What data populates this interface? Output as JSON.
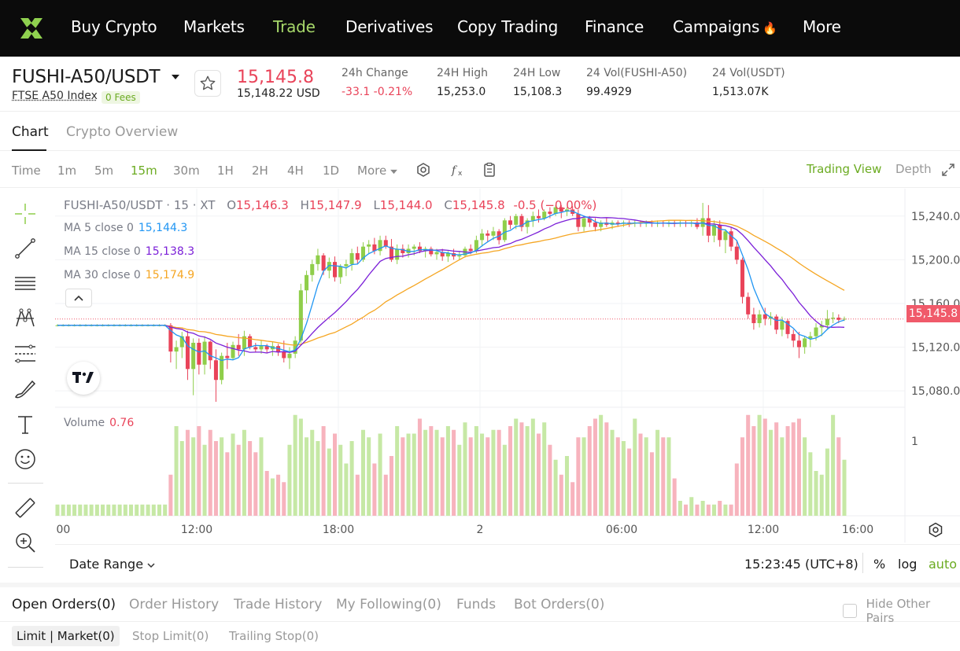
{
  "nav": {
    "items": [
      {
        "label": "Buy Crypto",
        "active": false
      },
      {
        "label": "Markets",
        "active": false
      },
      {
        "label": "Trade",
        "active": true
      },
      {
        "label": "Derivatives",
        "active": false
      },
      {
        "label": "Copy Trading",
        "active": false
      },
      {
        "label": "Finance",
        "active": false
      },
      {
        "label": "Campaigns",
        "active": false
      },
      {
        "label": "More",
        "active": false
      }
    ],
    "campaigns_icon": "🔥"
  },
  "ticker": {
    "pair": "FUSHI-A50/USDT",
    "index": "FTSE A50 Index",
    "fees_badge": "0 Fees",
    "last_price": "15,145.8",
    "last_usd": "15,148.22 USD",
    "stats": [
      {
        "label": "24h Change",
        "value": "-33.1 -0.21%",
        "negative": true
      },
      {
        "label": "24H High",
        "value": "15,253.0"
      },
      {
        "label": "24H Low",
        "value": "15,108.3"
      },
      {
        "label": "24 Vol(FUSHI-A50)",
        "value": "99.4929"
      },
      {
        "label": "24 Vol(USDT)",
        "value": "1,513.07K"
      }
    ]
  },
  "chart_tabs": [
    "Chart",
    "Crypto Overview"
  ],
  "intervals": [
    "Time",
    "1m",
    "5m",
    "15m",
    "30m",
    "1H",
    "2H",
    "4H",
    "1D",
    "More"
  ],
  "active_interval": "15m",
  "view_modes": {
    "trading_view": "Trading View",
    "depth": "Depth"
  },
  "legend": {
    "symbol": "FUSHI-A50/USDT · 15 · XT",
    "o_label": "O",
    "o": "15,146.3",
    "h_label": "H",
    "h": "15,147.9",
    "l_label": "L",
    "l": "15,144.0",
    "c_label": "C",
    "c": "15,145.8",
    "change": "-0.5 (−0.00%)"
  },
  "ma": [
    {
      "label": "MA 5 close 0",
      "value": "15,144.3",
      "color": "#2196f3"
    },
    {
      "label": "MA 15 close 0",
      "value": "15,138.3",
      "color": "#7b1fd8"
    },
    {
      "label": "MA 30 close 0",
      "value": "15,174.9",
      "color": "#f5a623"
    }
  ],
  "volume": {
    "label": "Volume",
    "value": "0.76"
  },
  "current_price_tag": "15,145.8",
  "colors": {
    "up": "#8fce4a",
    "down": "#e94359",
    "vol_up": "#c6e8a5",
    "vol_down": "#f7b3bd",
    "accent": "#6bab21"
  },
  "chart_data": {
    "type": "candlestick",
    "y_ticks": [
      "15,240.0",
      "15,200.0",
      "15,160.0",
      "15,120.0",
      "15,080.0"
    ],
    "ylim": [
      15065,
      15265
    ],
    "volume_tick": "1",
    "x_ticks": [
      ":00",
      "12:00",
      "18:00",
      "2",
      "06:00",
      "12:00",
      "16:00"
    ],
    "ohlc": [
      [
        15140,
        15141,
        15139,
        15140
      ],
      [
        15140,
        15141,
        15139,
        15140
      ],
      [
        15140,
        15141,
        15139,
        15140
      ],
      [
        15140,
        15141,
        15139,
        15140
      ],
      [
        15140,
        15141,
        15139,
        15140
      ],
      [
        15140,
        15141,
        15139,
        15140
      ],
      [
        15140,
        15141,
        15139,
        15140
      ],
      [
        15140,
        15141,
        15139,
        15140
      ],
      [
        15140,
        15141,
        15139,
        15140
      ],
      [
        15140,
        15141,
        15139,
        15140
      ],
      [
        15140,
        15141,
        15139,
        15140
      ],
      [
        15140,
        15141,
        15139,
        15140
      ],
      [
        15140,
        15141,
        15139,
        15140
      ],
      [
        15140,
        15141,
        15139,
        15140
      ],
      [
        15140,
        15141,
        15139,
        15140
      ],
      [
        15140,
        15141,
        15139,
        15140
      ],
      [
        15140,
        15141,
        15139,
        15140
      ],
      [
        15140,
        15141,
        15139,
        15140
      ],
      [
        15140,
        15141,
        15139,
        15140
      ],
      [
        15140,
        15141,
        15139,
        15140
      ],
      [
        15140,
        15142,
        15106,
        15116
      ],
      [
        15116,
        15126,
        15100,
        15120
      ],
      [
        15120,
        15134,
        15110,
        15130
      ],
      [
        15130,
        15135,
        15090,
        15100
      ],
      [
        15100,
        15128,
        15076,
        15124
      ],
      [
        15124,
        15128,
        15095,
        15104
      ],
      [
        15104,
        15130,
        15095,
        15125
      ],
      [
        15125,
        15126,
        15100,
        15108
      ],
      [
        15108,
        15118,
        15070,
        15090
      ],
      [
        15090,
        15115,
        15086,
        15112
      ],
      [
        15112,
        15124,
        15100,
        15110
      ],
      [
        15110,
        15125,
        15108,
        15122
      ],
      [
        15122,
        15132,
        15112,
        15118
      ],
      [
        15118,
        15135,
        15112,
        15130
      ],
      [
        15130,
        15132,
        15118,
        15120
      ],
      [
        15120,
        15124,
        15115,
        15118
      ],
      [
        15118,
        15126,
        15114,
        15121
      ],
      [
        15121,
        15123,
        15115,
        15118
      ],
      [
        15118,
        15125,
        15112,
        15121
      ],
      [
        15121,
        15123,
        15112,
        15116
      ],
      [
        15116,
        15126,
        15106,
        15110
      ],
      [
        15110,
        15120,
        15100,
        15114
      ],
      [
        15114,
        15130,
        15110,
        15126
      ],
      [
        15126,
        15178,
        15124,
        15172
      ],
      [
        15172,
        15190,
        15160,
        15186
      ],
      [
        15186,
        15200,
        15180,
        15196
      ],
      [
        15196,
        15210,
        15190,
        15204
      ],
      [
        15204,
        15206,
        15186,
        15190
      ],
      [
        15190,
        15202,
        15183,
        15198
      ],
      [
        15198,
        15203,
        15180,
        15184
      ],
      [
        15184,
        15196,
        15178,
        15194
      ],
      [
        15194,
        15200,
        15185,
        15196
      ],
      [
        15196,
        15210,
        15190,
        15206
      ],
      [
        15206,
        15212,
        15196,
        15200
      ],
      [
        15200,
        15216,
        15198,
        15212
      ],
      [
        15212,
        15218,
        15206,
        15214
      ],
      [
        15214,
        15220,
        15205,
        15208
      ],
      [
        15208,
        15222,
        15204,
        15218
      ],
      [
        15218,
        15222,
        15210,
        15212
      ],
      [
        15212,
        15219,
        15198,
        15200
      ],
      [
        15200,
        15214,
        15196,
        15210
      ],
      [
        15210,
        15214,
        15202,
        15206
      ],
      [
        15206,
        15214,
        15202,
        15210
      ],
      [
        15210,
        15214,
        15204,
        15212
      ],
      [
        15212,
        15216,
        15206,
        15208
      ],
      [
        15208,
        15212,
        15202,
        15210
      ],
      [
        15210,
        15212,
        15203,
        15205
      ],
      [
        15205,
        15210,
        15200,
        15207
      ],
      [
        15207,
        15210,
        15199,
        15203
      ],
      [
        15203,
        15208,
        15198,
        15206
      ],
      [
        15206,
        15210,
        15200,
        15203
      ],
      [
        15203,
        15208,
        15200,
        15204
      ],
      [
        15204,
        15212,
        15202,
        15210
      ],
      [
        15210,
        15214,
        15205,
        15208
      ],
      [
        15208,
        15222,
        15206,
        15218
      ],
      [
        15218,
        15228,
        15212,
        15224
      ],
      [
        15224,
        15227,
        15216,
        15222
      ],
      [
        15222,
        15230,
        15218,
        15226
      ],
      [
        15226,
        15228,
        15214,
        15218
      ],
      [
        15218,
        15238,
        15216,
        15236
      ],
      [
        15236,
        15240,
        15228,
        15232
      ],
      [
        15232,
        15242,
        15228,
        15240
      ],
      [
        15240,
        15242,
        15226,
        15230
      ],
      [
        15230,
        15238,
        15224,
        15236
      ],
      [
        15236,
        15244,
        15230,
        15240
      ],
      [
        15240,
        15246,
        15234,
        15238
      ],
      [
        15238,
        15246,
        15236,
        15244
      ],
      [
        15244,
        15248,
        15238,
        15242
      ],
      [
        15242,
        15250,
        15240,
        15248
      ],
      [
        15248,
        15250,
        15238,
        15244
      ],
      [
        15244,
        15248,
        15240,
        15246
      ],
      [
        15246,
        15249,
        15240,
        15242
      ],
      [
        15242,
        15246,
        15226,
        15230
      ],
      [
        15230,
        15240,
        15226,
        15238
      ],
      [
        15238,
        15240,
        15230,
        15234
      ],
      [
        15234,
        15238,
        15226,
        15230
      ],
      [
        15230,
        15236,
        15226,
        15234
      ],
      [
        15234,
        15238,
        15230,
        15232
      ],
      [
        15232,
        15236,
        15228,
        15234
      ],
      [
        15234,
        15236,
        15230,
        15233
      ],
      [
        15233,
        15236,
        15230,
        15234
      ],
      [
        15234,
        15236,
        15230,
        15233
      ],
      [
        15233,
        15236,
        15230,
        15234
      ],
      [
        15234,
        15236,
        15230,
        15233
      ],
      [
        15233,
        15236,
        15230,
        15234
      ],
      [
        15234,
        15236,
        15230,
        15233
      ],
      [
        15233,
        15236,
        15230,
        15234
      ],
      [
        15234,
        15236,
        15230,
        15233
      ],
      [
        15233,
        15236,
        15230,
        15234
      ],
      [
        15234,
        15236,
        15230,
        15233
      ],
      [
        15233,
        15236,
        15230,
        15234
      ],
      [
        15234,
        15236,
        15230,
        15233
      ],
      [
        15233,
        15236,
        15230,
        15234
      ],
      [
        15234,
        15238,
        15228,
        15230
      ],
      [
        15230,
        15252,
        15222,
        15238
      ],
      [
        15238,
        15250,
        15216,
        15222
      ],
      [
        15222,
        15236,
        15216,
        15232
      ],
      [
        15232,
        15236,
        15212,
        15218
      ],
      [
        15218,
        15228,
        15206,
        15226
      ],
      [
        15226,
        15230,
        15208,
        15212
      ],
      [
        15212,
        15218,
        15196,
        15200
      ],
      [
        15200,
        15202,
        15160,
        15166
      ],
      [
        15166,
        15170,
        15146,
        15150
      ],
      [
        15150,
        15156,
        15136,
        15142
      ],
      [
        15142,
        15154,
        15138,
        15150
      ],
      [
        15150,
        15156,
        15140,
        15146
      ],
      [
        15146,
        15152,
        15140,
        15148
      ],
      [
        15148,
        15150,
        15132,
        15136
      ],
      [
        15136,
        15148,
        15130,
        15144
      ],
      [
        15144,
        15146,
        15128,
        15132
      ],
      [
        15132,
        15136,
        15120,
        15126
      ],
      [
        15126,
        15134,
        15110,
        15120
      ],
      [
        15120,
        15130,
        15114,
        15128
      ],
      [
        15128,
        15134,
        15120,
        15130
      ],
      [
        15130,
        15142,
        15126,
        15138
      ],
      [
        15138,
        15144,
        15130,
        15140
      ],
      [
        15140,
        15154,
        15136,
        15146
      ],
      [
        15146,
        15152,
        15142,
        15147
      ],
      [
        15147,
        15150,
        15142,
        15145
      ],
      [
        15146,
        15148,
        15144,
        15146
      ]
    ],
    "volume": [
      0.15,
      0.15,
      0.15,
      0.15,
      0.15,
      0.15,
      0.15,
      0.15,
      0.15,
      0.15,
      0.15,
      0.15,
      0.15,
      0.15,
      0.15,
      0.15,
      0.15,
      0.15,
      0.15,
      0.15,
      0.55,
      1.2,
      1.0,
      1.15,
      1.05,
      1.2,
      0.95,
      1.15,
      1.0,
      1.05,
      0.85,
      1.1,
      0.95,
      1.15,
      1.0,
      0.85,
      1.05,
      0.6,
      0.5,
      0.55,
      0.45,
      0.95,
      1.35,
      1.3,
      1.05,
      1.15,
      1.0,
      1.2,
      0.9,
      1.1,
      0.95,
      0.7,
      1.0,
      0.55,
      1.15,
      1.05,
      0.7,
      1.1,
      0.55,
      0.8,
      1.2,
      1.05,
      1.1,
      1.1,
      1.3,
      1.15,
      1.2,
      1.15,
      1.05,
      1.2,
      1.15,
      0.95,
      1.25,
      1.05,
      1.2,
      1.1,
      1.05,
      1.15,
      1.15,
      0.95,
      1.2,
      1.3,
      1.25,
      1.2,
      1.3,
      1.1,
      1.25,
      0.95,
      0.75,
      0.55,
      0.8,
      0.45,
      1.05,
      1.05,
      1.2,
      1.3,
      1.35,
      1.25,
      1.15,
      1.05,
      1.0,
      0.9,
      1.3,
      1.1,
      1.05,
      0.85,
      1.15,
      1.05,
      1.05,
      0.5,
      0.2,
      0.15,
      0.25,
      0.15,
      0.2,
      0.15,
      0.15,
      0.2,
      0.15,
      0.15,
      0.7,
      1.05,
      1.35,
      1.2,
      1.35,
      1.3,
      1.15,
      1.25,
      1.05,
      1.2,
      1.25,
      1.3,
      1.05,
      0.85,
      0.6,
      0.55,
      0.9,
      1.35,
      1.05,
      0.75
    ]
  },
  "date_range": "Date Range",
  "clock": "15:23:45 (UTC+8)",
  "range_opts": [
    "%",
    "log",
    "auto"
  ],
  "orders_tabs": [
    "Open Orders(0)",
    "Order History",
    "Trade History",
    "My Following(0)",
    "Funds",
    "Bot Orders(0)"
  ],
  "hide_other_pairs": "Hide Other Pairs",
  "sub_tabs": [
    "Limit | Market(0)",
    "Stop Limit(0)",
    "Trailing Stop(0)"
  ]
}
